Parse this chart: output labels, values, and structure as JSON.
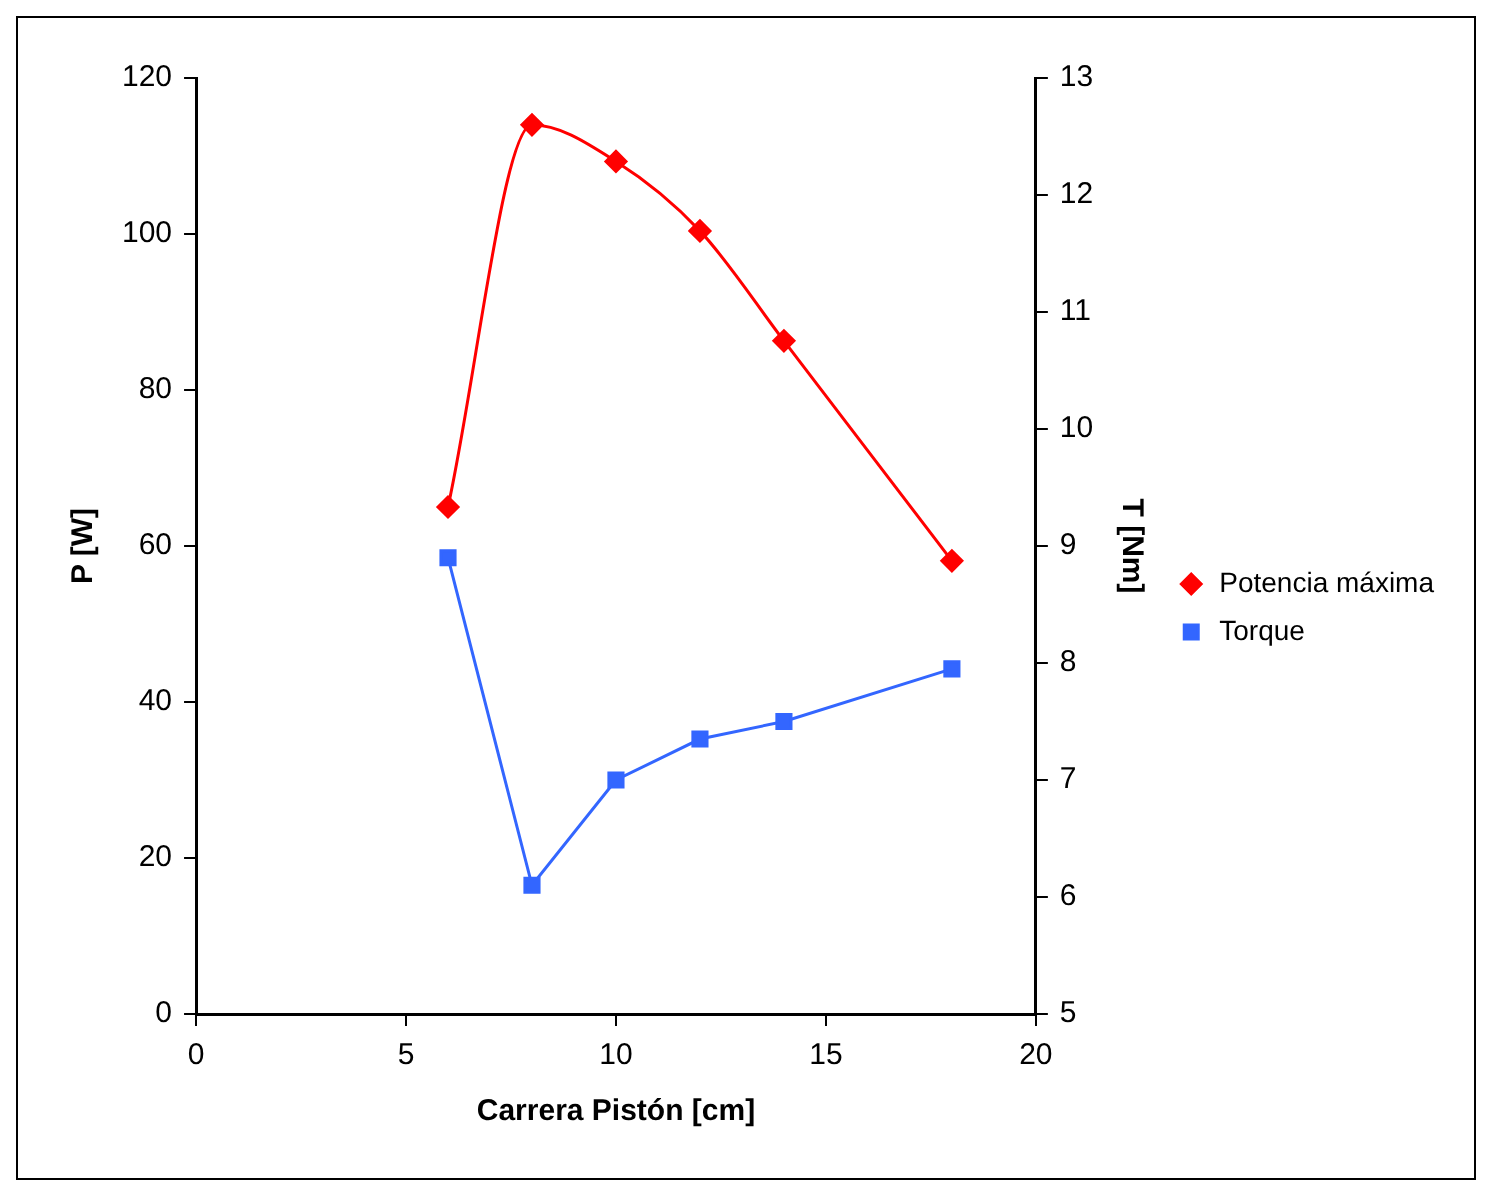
{
  "chart_data": {
    "type": "line",
    "xlabel": "Carrera Pistón [cm]",
    "ylabel": "P [W]",
    "y2label": "T [Nm]",
    "x": [
      6,
      8,
      10,
      12,
      14,
      18
    ],
    "series": [
      {
        "name": "Potencia máxima",
        "color": "#ff0000",
        "marker": "diamond",
        "values": [
          65,
          114,
          109.3,
          100.4,
          86.3,
          58.1
        ]
      },
      {
        "name": "Torque",
        "color": "#3366ff",
        "marker": "square",
        "axis": "y2",
        "values": [
          8.9,
          6.1,
          7.0,
          7.35,
          7.5,
          7.95
        ]
      }
    ],
    "xlim": [
      0,
      20
    ],
    "xticks": [
      0,
      5,
      10,
      15,
      20
    ],
    "ylim": [
      0,
      120
    ],
    "yticks": [
      0,
      20,
      40,
      60,
      80,
      100,
      120
    ],
    "y2lim": [
      5,
      13
    ],
    "y2ticks": [
      5,
      6,
      7,
      8,
      9,
      10,
      11,
      12,
      13
    ],
    "grid": false,
    "legend": "right"
  }
}
